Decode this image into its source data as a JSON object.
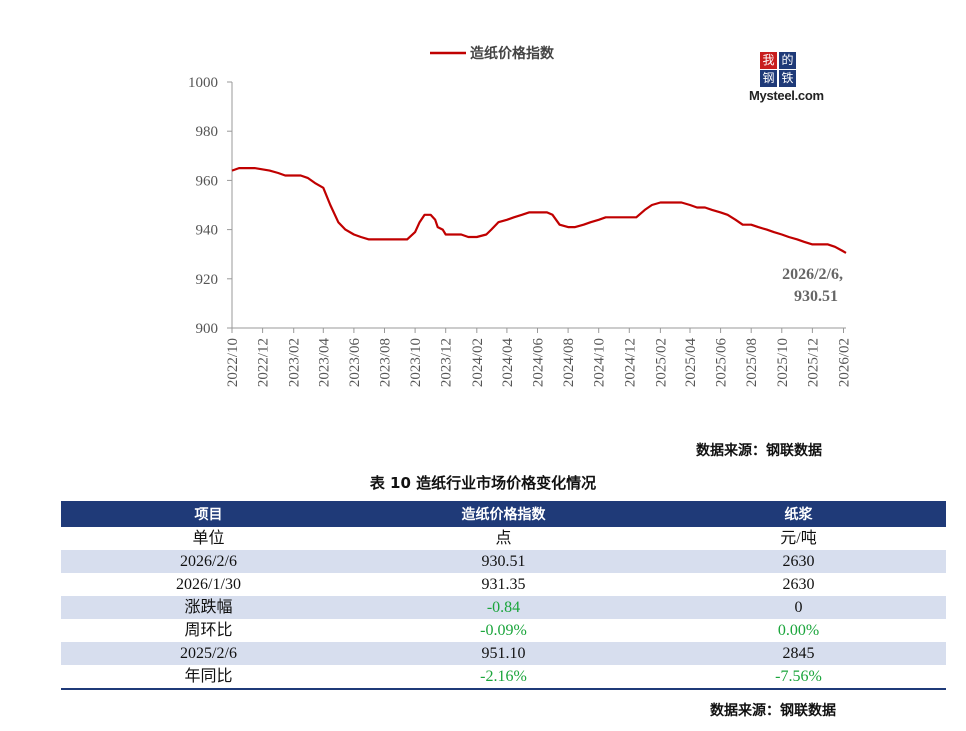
{
  "chart_data": {
    "type": "line",
    "title": "",
    "series": [
      {
        "name": "造纸价格指数",
        "color": "#c00000",
        "points": [
          [
            "2022-10-01",
            964
          ],
          [
            "2022-10-15",
            965
          ],
          [
            "2022-11-15",
            965
          ],
          [
            "2022-12-15",
            964
          ],
          [
            "2023-01-01",
            963
          ],
          [
            "2023-01-15",
            962
          ],
          [
            "2023-02-15",
            962
          ],
          [
            "2023-03-01",
            961
          ],
          [
            "2023-03-15",
            959
          ],
          [
            "2023-04-01",
            957
          ],
          [
            "2023-04-15",
            950
          ],
          [
            "2023-05-01",
            943
          ],
          [
            "2023-05-15",
            940
          ],
          [
            "2023-06-01",
            938
          ],
          [
            "2023-06-15",
            937
          ],
          [
            "2023-07-01",
            936
          ],
          [
            "2023-08-15",
            936
          ],
          [
            "2023-09-15",
            936
          ],
          [
            "2023-10-01",
            939
          ],
          [
            "2023-10-10",
            943
          ],
          [
            "2023-10-20",
            946
          ],
          [
            "2023-11-01",
            946
          ],
          [
            "2023-11-10",
            944
          ],
          [
            "2023-11-15",
            941
          ],
          [
            "2023-11-25",
            940
          ],
          [
            "2023-12-01",
            938
          ],
          [
            "2023-12-15",
            938
          ],
          [
            "2024-01-01",
            938
          ],
          [
            "2024-01-15",
            937
          ],
          [
            "2024-02-01",
            937
          ],
          [
            "2024-02-20",
            938
          ],
          [
            "2024-03-01",
            940
          ],
          [
            "2024-03-15",
            943
          ],
          [
            "2024-04-01",
            944
          ],
          [
            "2024-04-15",
            945
          ],
          [
            "2024-05-01",
            946
          ],
          [
            "2024-05-15",
            947
          ],
          [
            "2024-06-01",
            947
          ],
          [
            "2024-06-20",
            947
          ],
          [
            "2024-07-01",
            946
          ],
          [
            "2024-07-15",
            942
          ],
          [
            "2024-08-01",
            941
          ],
          [
            "2024-08-15",
            941
          ],
          [
            "2024-09-01",
            942
          ],
          [
            "2024-09-15",
            943
          ],
          [
            "2024-10-01",
            944
          ],
          [
            "2024-10-15",
            945
          ],
          [
            "2024-11-15",
            945
          ],
          [
            "2024-12-15",
            945
          ],
          [
            "2025-01-01",
            948
          ],
          [
            "2025-01-15",
            950
          ],
          [
            "2025-02-01",
            951
          ],
          [
            "2025-02-15",
            951
          ],
          [
            "2025-03-15",
            951
          ],
          [
            "2025-04-01",
            950
          ],
          [
            "2025-04-15",
            949
          ],
          [
            "2025-05-01",
            949
          ],
          [
            "2025-05-15",
            948
          ],
          [
            "2025-06-01",
            947
          ],
          [
            "2025-06-15",
            946
          ],
          [
            "2025-07-01",
            944
          ],
          [
            "2025-07-15",
            942
          ],
          [
            "2025-08-01",
            942
          ],
          [
            "2025-08-15",
            941
          ],
          [
            "2025-09-01",
            940
          ],
          [
            "2025-09-15",
            939
          ],
          [
            "2025-10-01",
            938
          ],
          [
            "2025-10-15",
            937
          ],
          [
            "2025-11-01",
            936
          ],
          [
            "2025-11-15",
            935
          ],
          [
            "2025-12-01",
            934
          ],
          [
            "2025-12-15",
            934
          ],
          [
            "2026-01-01",
            934
          ],
          [
            "2026-01-15",
            933
          ],
          [
            "2026-01-30",
            931.35
          ],
          [
            "2026-02-06",
            930.51
          ]
        ]
      }
    ],
    "x_tick_labels": [
      "2022/10",
      "2022/12",
      "2023/02",
      "2023/04",
      "2023/06",
      "2023/08",
      "2023/10",
      "2023/12",
      "2024/02",
      "2024/04",
      "2024/06",
      "2024/08",
      "2024/10",
      "2024/12",
      "2025/02",
      "2025/04",
      "2025/06",
      "2025/08",
      "2025/10",
      "2025/12",
      "2026/02"
    ],
    "x_tick_dates": [
      "2022-10-01",
      "2022-12-01",
      "2023-02-01",
      "2023-04-01",
      "2023-06-01",
      "2023-08-01",
      "2023-10-01",
      "2023-12-01",
      "2024-02-01",
      "2024-04-01",
      "2024-06-01",
      "2024-08-01",
      "2024-10-01",
      "2024-12-01",
      "2025-02-01",
      "2025-04-01",
      "2025-06-01",
      "2025-08-01",
      "2025-10-01",
      "2025-12-01",
      "2026-02-01"
    ],
    "xlim": [
      "2022-10-01",
      "2026-02-06"
    ],
    "y_ticks": [
      900,
      920,
      940,
      960,
      980,
      1000
    ],
    "ylim": [
      900,
      1000
    ],
    "grid": false,
    "legend_position": "top",
    "annotation": {
      "line1": "2026/2/6,",
      "line2": "930.51"
    }
  },
  "logo": {
    "chars": [
      "我",
      "的",
      "钢",
      "铁"
    ],
    "text": "Mysteel.com"
  },
  "source_top": "数据来源：钢联数据",
  "table": {
    "title": "表 10 造纸行业市场价格变化情况",
    "headers": [
      "项目",
      "造纸价格指数",
      "纸浆"
    ],
    "rows": [
      [
        "单位",
        "点",
        "元/吨"
      ],
      [
        "2026/2/6",
        "930.51",
        "2630"
      ],
      [
        "2026/1/30",
        "931.35",
        "2630"
      ],
      [
        "涨跌幅",
        "-0.84",
        "0"
      ],
      [
        "周环比",
        "-0.09%",
        "0.00%"
      ],
      [
        "2025/2/6",
        "951.10",
        "2845"
      ],
      [
        "年同比",
        "-2.16%",
        "-7.56%"
      ]
    ]
  },
  "source_bottom": "数据来源：钢联数据",
  "colors": {
    "line": "#c00000",
    "header_bg": "#1f3a78",
    "alt_row": "#d7deee",
    "green": "#1aa53b"
  }
}
